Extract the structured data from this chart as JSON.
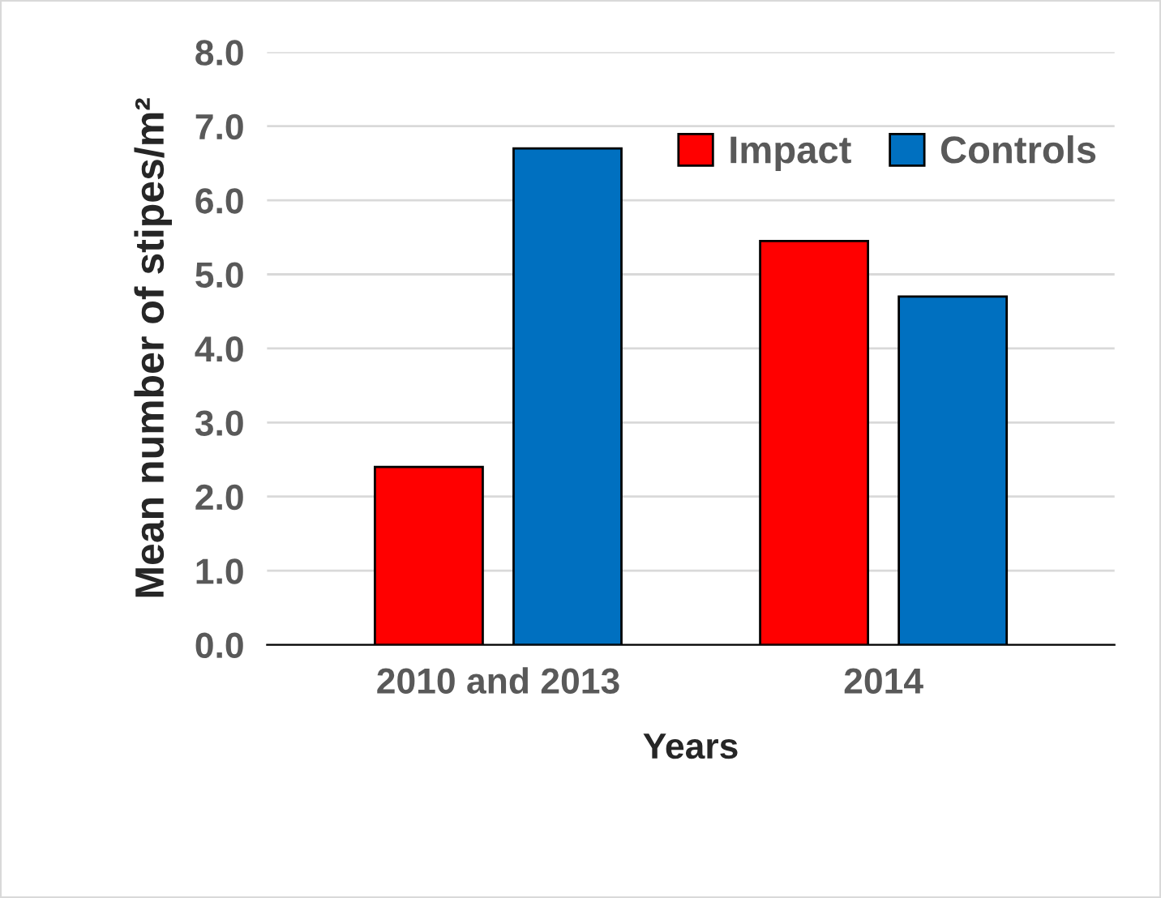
{
  "chart_data": {
    "type": "bar",
    "xlabel": "Years",
    "ylabel": "Mean number of stipes/m²",
    "categories": [
      "2010 and 2013",
      "2014"
    ],
    "series": [
      {
        "name": "Impact",
        "color": "#ff0000",
        "values": [
          2.4,
          5.45
        ]
      },
      {
        "name": "Controls",
        "color": "#0070c0",
        "values": [
          6.7,
          4.7
        ]
      }
    ],
    "ylim": [
      0,
      8
    ],
    "yticks": [
      {
        "value": 0,
        "label": "0.0"
      },
      {
        "value": 1,
        "label": "1.0"
      },
      {
        "value": 2,
        "label": "2.0"
      },
      {
        "value": 3,
        "label": "3.0"
      },
      {
        "value": 4,
        "label": "4.0"
      },
      {
        "value": 5,
        "label": "5.0"
      },
      {
        "value": 6,
        "label": "6.0"
      },
      {
        "value": 7,
        "label": "7.0"
      },
      {
        "value": 8,
        "label": "8.0"
      }
    ],
    "grid": "y",
    "legend": "top right"
  }
}
